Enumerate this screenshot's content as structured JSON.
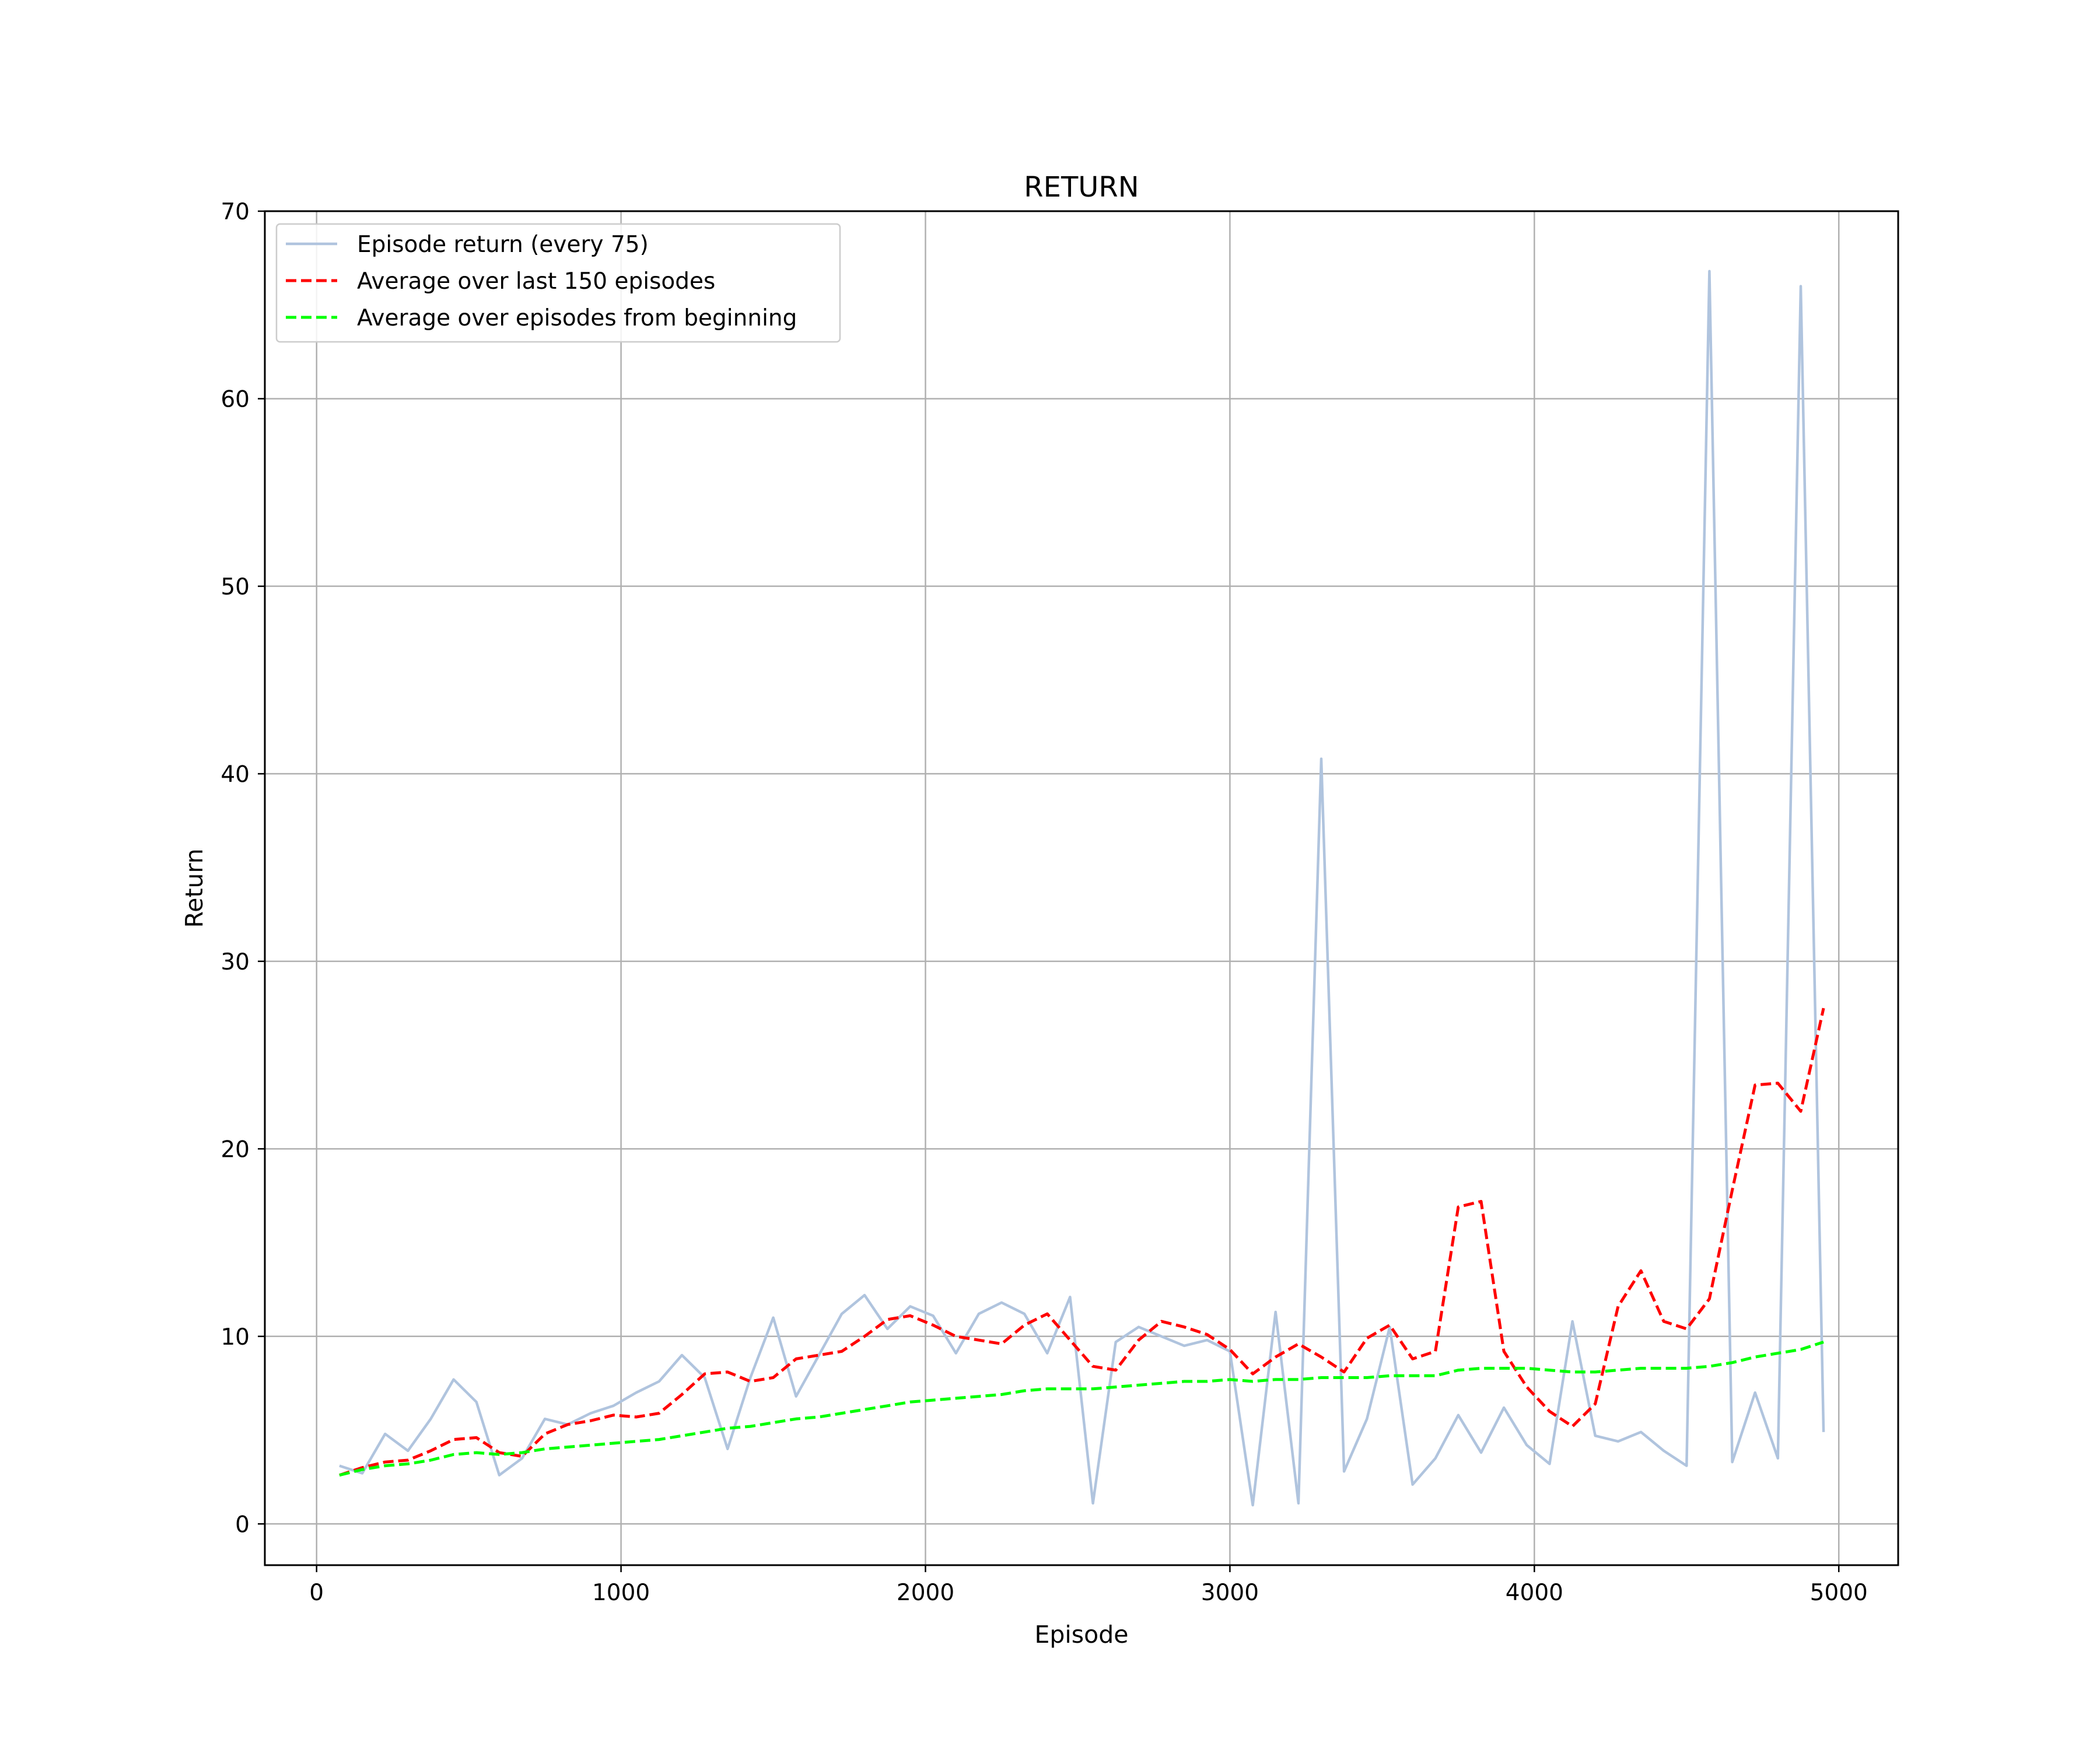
{
  "chart_data": {
    "type": "line",
    "title": "RETURN",
    "xlabel": "Episode",
    "ylabel": "Return",
    "xlim": [
      -170,
      5195
    ],
    "ylim": [
      -2.2,
      70
    ],
    "xticks": [
      0,
      1000,
      2000,
      3000,
      4000,
      5000
    ],
    "yticks": [
      0,
      10,
      20,
      30,
      40,
      50,
      60,
      70
    ],
    "xtick_labels": [
      "0",
      "1000",
      "2000",
      "3000",
      "4000",
      "5000"
    ],
    "ytick_labels": [
      "0",
      "10",
      "20",
      "30",
      "40",
      "50",
      "60",
      "70"
    ],
    "grid": true,
    "legend_position": "top-left",
    "series": [
      {
        "name": "Episode return (every 75)",
        "color": "#b0c4de",
        "style": "solid",
        "x": [
          75,
          150,
          225,
          300,
          375,
          450,
          525,
          600,
          675,
          750,
          825,
          900,
          975,
          1050,
          1125,
          1200,
          1275,
          1350,
          1425,
          1500,
          1575,
          1650,
          1725,
          1800,
          1875,
          1950,
          2025,
          2100,
          2175,
          2250,
          2325,
          2400,
          2475,
          2550,
          2625,
          2700,
          2775,
          2850,
          2925,
          3000,
          3075,
          3150,
          3225,
          3300,
          3375,
          3450,
          3525,
          3600,
          3675,
          3750,
          3825,
          3900,
          3975,
          4050,
          4125,
          4200,
          4275,
          4350,
          4425,
          4500,
          4575,
          4650,
          4725,
          4800,
          4875,
          4950
        ],
        "y": [
          3.1,
          2.7,
          4.8,
          3.9,
          5.6,
          7.7,
          6.5,
          2.6,
          3.5,
          5.6,
          5.3,
          5.9,
          6.3,
          7.0,
          7.6,
          9.0,
          7.8,
          4.0,
          7.8,
          11.0,
          6.8,
          9.0,
          11.2,
          12.2,
          10.4,
          11.6,
          11.1,
          9.1,
          11.2,
          11.8,
          11.2,
          9.1,
          12.1,
          1.1,
          9.7,
          10.5,
          10.0,
          9.5,
          9.8,
          9.2,
          1.0,
          11.3,
          1.1,
          40.8,
          2.8,
          5.6,
          10.5,
          2.1,
          3.5,
          5.8,
          3.8,
          6.2,
          4.2,
          3.2,
          10.8,
          4.7,
          4.4,
          4.9,
          3.9,
          3.1,
          66.8,
          3.3,
          7.0,
          3.5,
          66.0,
          4.9
        ]
      },
      {
        "name": "Average over last 150 episodes",
        "color": "#ff0000",
        "style": "dashed",
        "x": [
          75,
          150,
          225,
          300,
          375,
          450,
          525,
          600,
          675,
          750,
          825,
          900,
          975,
          1050,
          1125,
          1200,
          1275,
          1350,
          1425,
          1500,
          1575,
          1650,
          1725,
          1800,
          1875,
          1950,
          2025,
          2100,
          2175,
          2250,
          2325,
          2400,
          2475,
          2550,
          2625,
          2700,
          2775,
          2850,
          2925,
          3000,
          3075,
          3150,
          3225,
          3300,
          3375,
          3450,
          3525,
          3600,
          3675,
          3750,
          3825,
          3900,
          3975,
          4050,
          4125,
          4200,
          4275,
          4350,
          4425,
          4500,
          4575,
          4650,
          4725,
          4800,
          4875,
          4950
        ],
        "y": [
          2.6,
          3.0,
          3.3,
          3.4,
          3.9,
          4.5,
          4.6,
          3.8,
          3.6,
          4.8,
          5.3,
          5.5,
          5.8,
          5.7,
          5.9,
          6.9,
          8.0,
          8.1,
          7.6,
          7.8,
          8.8,
          9.0,
          9.2,
          10.0,
          10.9,
          11.1,
          10.6,
          10.0,
          9.8,
          9.6,
          10.6,
          11.2,
          9.8,
          8.4,
          8.2,
          9.8,
          10.8,
          10.5,
          10.1,
          9.3,
          8.0,
          8.9,
          9.6,
          8.9,
          8.1,
          9.9,
          10.6,
          8.8,
          9.2,
          16.9,
          17.2,
          9.2,
          7.3,
          6.0,
          5.2,
          6.4,
          11.6,
          13.5,
          10.8,
          10.4,
          12.0,
          17.8,
          23.4,
          23.5,
          22.0,
          27.5
        ]
      },
      {
        "name": "Average over episodes from beginning",
        "color": "#00ff00",
        "style": "dashed",
        "x": [
          75,
          150,
          225,
          300,
          375,
          450,
          525,
          600,
          675,
          750,
          825,
          900,
          975,
          1050,
          1125,
          1200,
          1275,
          1350,
          1425,
          1500,
          1575,
          1650,
          1725,
          1800,
          1875,
          1950,
          2025,
          2100,
          2175,
          2250,
          2325,
          2400,
          2475,
          2550,
          2625,
          2700,
          2775,
          2850,
          2925,
          3000,
          3075,
          3150,
          3225,
          3300,
          3375,
          3450,
          3525,
          3600,
          3675,
          3750,
          3825,
          3900,
          3975,
          4050,
          4125,
          4200,
          4275,
          4350,
          4425,
          4500,
          4575,
          4650,
          4725,
          4800,
          4875,
          4950
        ],
        "y": [
          2.6,
          2.9,
          3.1,
          3.2,
          3.4,
          3.7,
          3.8,
          3.7,
          3.8,
          4.0,
          4.1,
          4.2,
          4.3,
          4.4,
          4.5,
          4.7,
          4.9,
          5.1,
          5.2,
          5.4,
          5.6,
          5.7,
          5.9,
          6.1,
          6.3,
          6.5,
          6.6,
          6.7,
          6.8,
          6.9,
          7.1,
          7.2,
          7.2,
          7.2,
          7.3,
          7.4,
          7.5,
          7.6,
          7.6,
          7.7,
          7.6,
          7.7,
          7.7,
          7.8,
          7.8,
          7.8,
          7.9,
          7.9,
          7.9,
          8.2,
          8.3,
          8.3,
          8.3,
          8.2,
          8.1,
          8.1,
          8.2,
          8.3,
          8.3,
          8.3,
          8.4,
          8.6,
          8.9,
          9.1,
          9.3,
          9.7
        ]
      }
    ]
  }
}
